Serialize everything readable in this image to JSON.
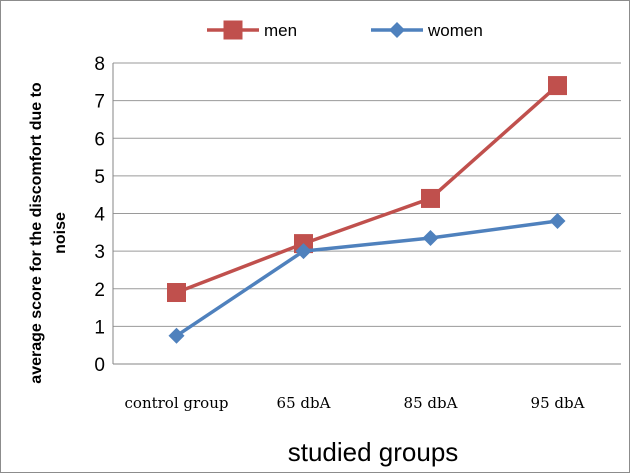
{
  "chart_data": {
    "type": "line",
    "categories": [
      "control group",
      "65 dbA",
      "85 dbA",
      "95 dbA"
    ],
    "series": [
      {
        "name": "men",
        "values": [
          1.9,
          3.2,
          4.4,
          7.4
        ],
        "color": "#c0504d",
        "marker": "square"
      },
      {
        "name": "women",
        "values": [
          0.75,
          3.0,
          3.35,
          3.8
        ],
        "color": "#4f81bd",
        "marker": "diamond"
      }
    ],
    "xlabel": "studied groups",
    "ylabel_line1": "average score for the discomfort due to",
    "ylabel_line2": "noise",
    "ylim": [
      0,
      8
    ],
    "yticks": [
      "0",
      "1",
      "2",
      "3",
      "4",
      "5",
      "6",
      "7",
      "8"
    ],
    "grid": true,
    "legend_position": "top"
  }
}
